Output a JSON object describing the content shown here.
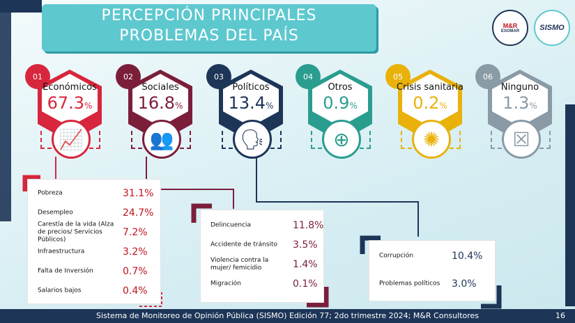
{
  "title": {
    "line1": "PERCEPCIÓN PRINCIPALES",
    "line2": "PROBLEMAS DEL PAÍS"
  },
  "logos": {
    "mr": "M&R",
    "esomar": "ESOMAR",
    "sismo": "SISMO"
  },
  "categories": [
    {
      "num": "01",
      "label": "Económicos",
      "value": "67.3",
      "unit": "%",
      "color": "#d7263d",
      "icon": "economy-chart-icon"
    },
    {
      "num": "02",
      "label": "Sociales",
      "value": "16.8",
      "unit": "%",
      "color": "#7b1e3a",
      "icon": "crowd-icon"
    },
    {
      "num": "03",
      "label": "Políticos",
      "value": "13.4",
      "unit": "%",
      "color": "#1d3557",
      "icon": "politicians-icon"
    },
    {
      "num": "04",
      "label": "Otros",
      "value": "0.9",
      "unit": "%",
      "color": "#2a9d8f",
      "icon": "magnifier-plus-icon"
    },
    {
      "num": "05",
      "label": "Crisis sanitaria",
      "value": "0.2",
      "unit": "%",
      "color": "#e9b10a",
      "icon": "virus-icon"
    },
    {
      "num": "06",
      "label": "Ninguno",
      "value": "1.3",
      "unit": "%",
      "color": "#8a9aa6",
      "icon": "ballot-x-icon"
    }
  ],
  "economicos": [
    {
      "label": "Pobreza",
      "value": "31.1%"
    },
    {
      "label": "Desempleo",
      "value": "24.7%"
    },
    {
      "label": "Carestía de la vida (Alza de precios/ Servicios Públicos)",
      "value": "7.2%"
    },
    {
      "label": "Infraestructura",
      "value": "3.2%"
    },
    {
      "label": "Falta de Inversión",
      "value": "0.7%"
    },
    {
      "label": "Salarios bajos",
      "value": "0.4%"
    }
  ],
  "sociales": [
    {
      "label": "Delincuencia",
      "value": "11.8%"
    },
    {
      "label": "Accidente de tránsito",
      "value": "3.5%"
    },
    {
      "label": "Violencia contra la mujer/ femicidio",
      "value": "1.4%"
    },
    {
      "label": "Migración",
      "value": "0.1%"
    }
  ],
  "politicos": [
    {
      "label": "Corrupción",
      "value": "10.4%"
    },
    {
      "label": "Problemas políticos",
      "value": "3.0%"
    }
  ],
  "footer": {
    "text": "Sistema de Monitoreo de Opinión Pública (SISMO) Edición 77; 2do trimestre 2024; M&R Consultores",
    "page": "16"
  }
}
